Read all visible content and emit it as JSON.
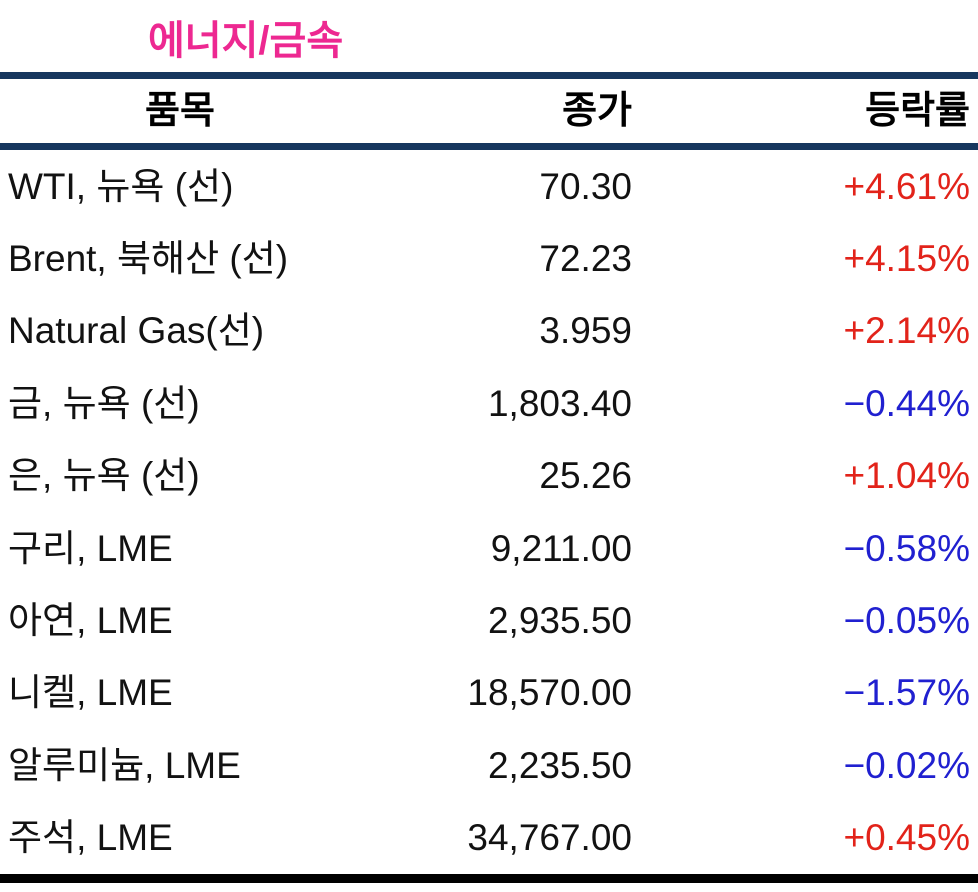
{
  "colors": {
    "title_pink": "#ED2891",
    "navy_rule": "#17375E",
    "black_rule": "#000000",
    "up_red": "#E2231A",
    "down_blue": "#2020D0",
    "text_black": "#121212"
  },
  "chart_data": {
    "type": "table",
    "title": "에너지/금속",
    "columns": [
      "품목",
      "종가",
      "등락률"
    ],
    "legend": "red = gain (+), blue = loss (−)",
    "rows": [
      {
        "item": "WTI, 뉴욕 (선)",
        "close": "70.30",
        "change": "+4.61%",
        "direction": "up"
      },
      {
        "item": "Brent, 북해산 (선)",
        "close": "72.23",
        "change": "+4.15%",
        "direction": "up"
      },
      {
        "item": "Natural Gas(선)",
        "close": "3.959",
        "change": "+2.14%",
        "direction": "up"
      },
      {
        "item": "금, 뉴욕 (선)",
        "close": "1,803.40",
        "change": "−0.44%",
        "direction": "down"
      },
      {
        "item": "은, 뉴욕 (선)",
        "close": "25.26",
        "change": "+1.04%",
        "direction": "up"
      },
      {
        "item": "구리, LME",
        "close": "9,211.00",
        "change": "−0.58%",
        "direction": "down"
      },
      {
        "item": "아연, LME",
        "close": "2,935.50",
        "change": "−0.05%",
        "direction": "down"
      },
      {
        "item": "니켈, LME",
        "close": "18,570.00",
        "change": "−1.57%",
        "direction": "down"
      },
      {
        "item": "알루미늄, LME",
        "close": "2,235.50",
        "change": "−0.02%",
        "direction": "down"
      },
      {
        "item": "주석, LME",
        "close": "34,767.00",
        "change": "+0.45%",
        "direction": "up"
      }
    ]
  }
}
